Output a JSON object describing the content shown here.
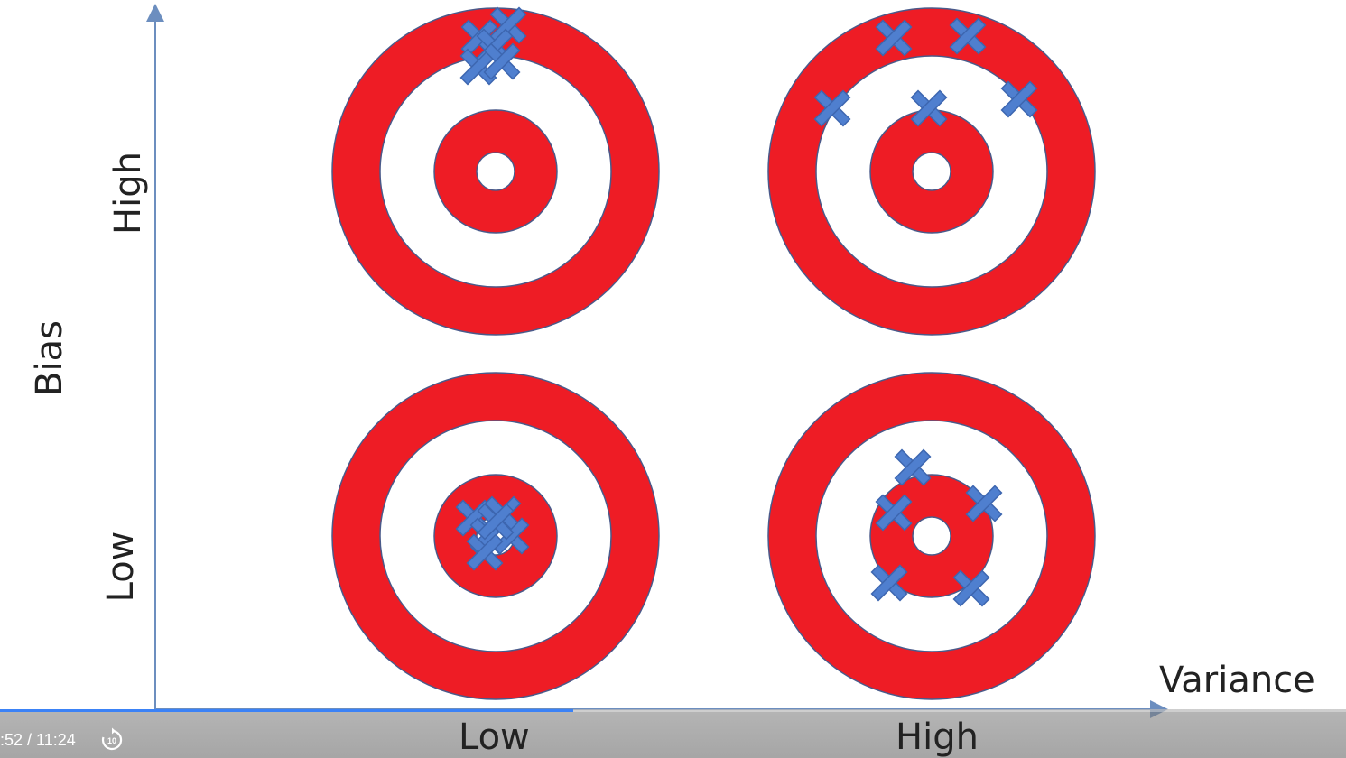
{
  "axes": {
    "y_title": "Bias",
    "x_title": "Variance",
    "y_high": "High",
    "y_low": "Low",
    "x_low": "Low",
    "x_high": "High"
  },
  "colors": {
    "ring_red": "#ee1c25",
    "marker_blue": "#4f7fcf",
    "axis": "#6c8ebf",
    "progress": "#3b82f6"
  },
  "targets": [
    {
      "name": "target-high-bias-low-variance"
    },
    {
      "name": "target-high-bias-high-variance"
    },
    {
      "name": "target-low-bias-low-variance"
    },
    {
      "name": "target-low-bias-high-variance"
    }
  ],
  "player": {
    "time": ":52 / 11:24",
    "progress_fraction": 0.426,
    "replay_icon": "replay-10-icon",
    "replay_label": "10"
  }
}
